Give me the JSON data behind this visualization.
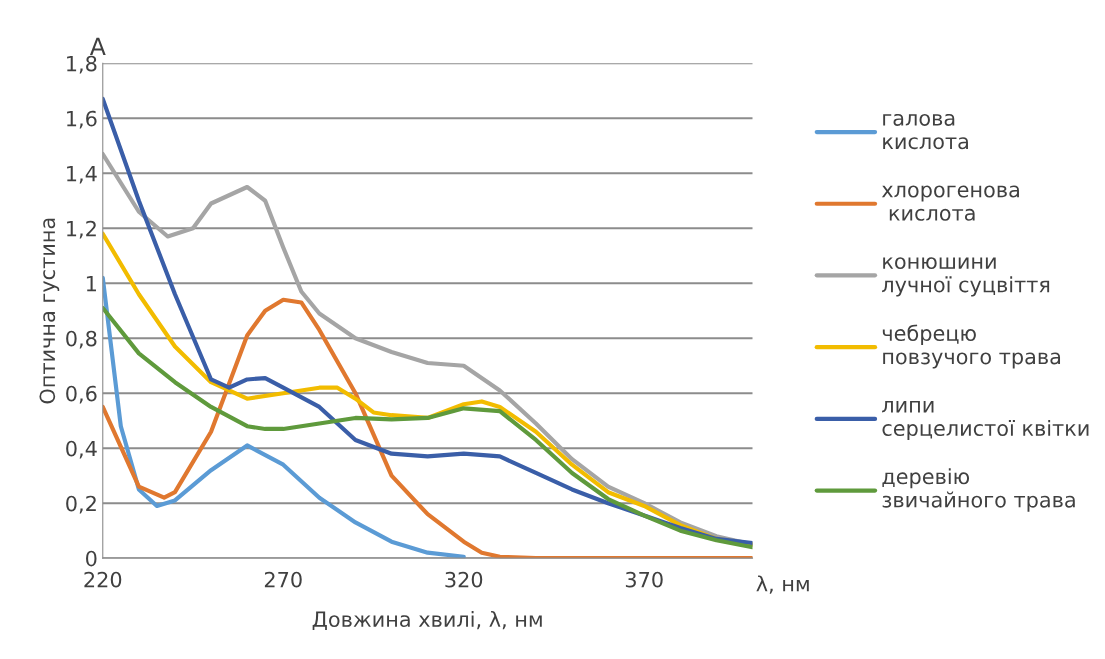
{
  "chart_data": {
    "type": "line",
    "title": "A",
    "xlabel": "Довжина хвилі, λ, нм",
    "ylabel": "Оптична густина",
    "annotations": [
      "λ, нм"
    ],
    "xlim": [
      220,
      400
    ],
    "xticks": [
      220,
      270,
      320,
      370
    ],
    "ylim": [
      0,
      1.8
    ],
    "yticks": [
      0,
      {
        "value": 0.2,
        "label": "0,2"
      },
      {
        "value": 0.4,
        "label": "0,4"
      },
      {
        "value": 0.6,
        "label": "0,6"
      },
      {
        "value": 0.8,
        "label": "0,8"
      },
      1,
      {
        "value": 1.2,
        "label": "1,2"
      },
      {
        "value": 1.4,
        "label": "1,4"
      },
      {
        "value": 1.6,
        "label": "1,6"
      },
      {
        "value": 1.8,
        "label": "1,8"
      }
    ],
    "grid": "y",
    "legend": "right",
    "marker": "none",
    "line_style": "solid",
    "series": [
      {
        "name": "галова\nкислота",
        "color": "#5b9bd5",
        "x": [
          220,
          225,
          230,
          235,
          240,
          250,
          260,
          270,
          280,
          290,
          300,
          310,
          320
        ],
        "values": [
          1.02,
          0.48,
          0.25,
          0.19,
          0.21,
          0.32,
          0.41,
          0.34,
          0.22,
          0.13,
          0.06,
          0.02,
          0.005
        ]
      },
      {
        "name": "хлорогенова\n кислота",
        "color": "#e0782f",
        "x": [
          220,
          230,
          237,
          240,
          250,
          260,
          265,
          270,
          275,
          280,
          290,
          300,
          310,
          320,
          325,
          330,
          340,
          350,
          360,
          370,
          380,
          390,
          400
        ],
        "values": [
          0.55,
          0.26,
          0.22,
          0.24,
          0.46,
          0.81,
          0.9,
          0.94,
          0.93,
          0.83,
          0.6,
          0.3,
          0.16,
          0.06,
          0.02,
          0.005,
          0,
          0,
          0,
          0,
          0,
          0,
          0
        ]
      },
      {
        "name": "конюшини\nлучної суцвіття",
        "color": "#a5a5a5",
        "x": [
          220,
          230,
          238,
          245,
          250,
          260,
          265,
          270,
          275,
          280,
          290,
          300,
          310,
          320,
          330,
          340,
          350,
          360,
          370,
          380,
          390,
          400
        ],
        "values": [
          1.47,
          1.26,
          1.17,
          1.2,
          1.29,
          1.35,
          1.3,
          1.13,
          0.97,
          0.89,
          0.8,
          0.75,
          0.71,
          0.7,
          0.61,
          0.49,
          0.36,
          0.26,
          0.2,
          0.13,
          0.08,
          0.05
        ]
      },
      {
        "name": "чебрецю\nповзучого трава",
        "color": "#f2bc00",
        "x": [
          220,
          230,
          240,
          250,
          260,
          270,
          280,
          285,
          290,
          295,
          300,
          310,
          320,
          325,
          330,
          340,
          350,
          360,
          370,
          380,
          390,
          400
        ],
        "values": [
          1.18,
          0.96,
          0.77,
          0.64,
          0.58,
          0.6,
          0.62,
          0.62,
          0.58,
          0.53,
          0.52,
          0.51,
          0.56,
          0.57,
          0.55,
          0.46,
          0.34,
          0.24,
          0.19,
          0.12,
          0.07,
          0.05
        ]
      },
      {
        "name": "липи\nсерцелистої квітки",
        "color": "#3a5ea8",
        "x": [
          220,
          230,
          240,
          250,
          255,
          260,
          265,
          270,
          280,
          290,
          300,
          310,
          320,
          330,
          340,
          350,
          360,
          370,
          380,
          390,
          400
        ],
        "values": [
          1.67,
          1.3,
          0.96,
          0.65,
          0.62,
          0.65,
          0.655,
          0.62,
          0.55,
          0.43,
          0.38,
          0.37,
          0.38,
          0.37,
          0.31,
          0.25,
          0.2,
          0.155,
          0.11,
          0.07,
          0.055
        ]
      },
      {
        "name": "деревію\nзвичайного трава",
        "color": "#5f9a3c",
        "x": [
          220,
          230,
          240,
          250,
          260,
          265,
          270,
          280,
          290,
          300,
          310,
          320,
          330,
          340,
          350,
          360,
          370,
          380,
          390,
          400
        ],
        "values": [
          0.91,
          0.745,
          0.64,
          0.55,
          0.48,
          0.47,
          0.47,
          0.49,
          0.51,
          0.505,
          0.51,
          0.545,
          0.535,
          0.43,
          0.31,
          0.215,
          0.155,
          0.1,
          0.065,
          0.04
        ]
      }
    ]
  }
}
